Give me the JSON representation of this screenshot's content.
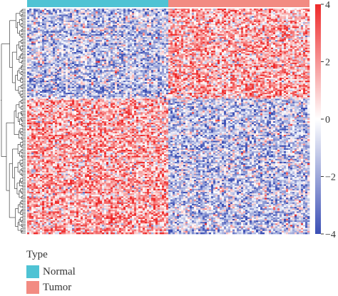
{
  "chart_data": {
    "type": "heatmap",
    "title": "",
    "xlabel": "",
    "ylabel": "",
    "color_scale": {
      "min": -4,
      "max": 4,
      "ticks": [
        4,
        2,
        0,
        -2,
        -4
      ],
      "tick_labels": [
        "4",
        "2",
        "0",
        "−2",
        "−4"
      ],
      "colors": {
        "low": "#3b4fb5",
        "mid": "#ffffff",
        "high": "#ee2a2a"
      }
    },
    "annotation": {
      "name": "Type",
      "groups": [
        {
          "label": "Normal",
          "color": "#4fc3d4"
        },
        {
          "label": "Tumor",
          "color": "#f28b82"
        }
      ]
    },
    "blocks": [
      {
        "rows": "upper cluster",
        "columns": "Normal",
        "mean_value": -1.2
      },
      {
        "rows": "upper cluster",
        "columns": "Tumor",
        "mean_value": 1.5
      },
      {
        "rows": "lower cluster",
        "columns": "Normal",
        "mean_value": 1.5
      },
      {
        "rows": "lower cluster",
        "columns": "Tumor",
        "mean_value": -1.3
      }
    ],
    "dendrogram": "rows",
    "legend_placement": "right"
  }
}
